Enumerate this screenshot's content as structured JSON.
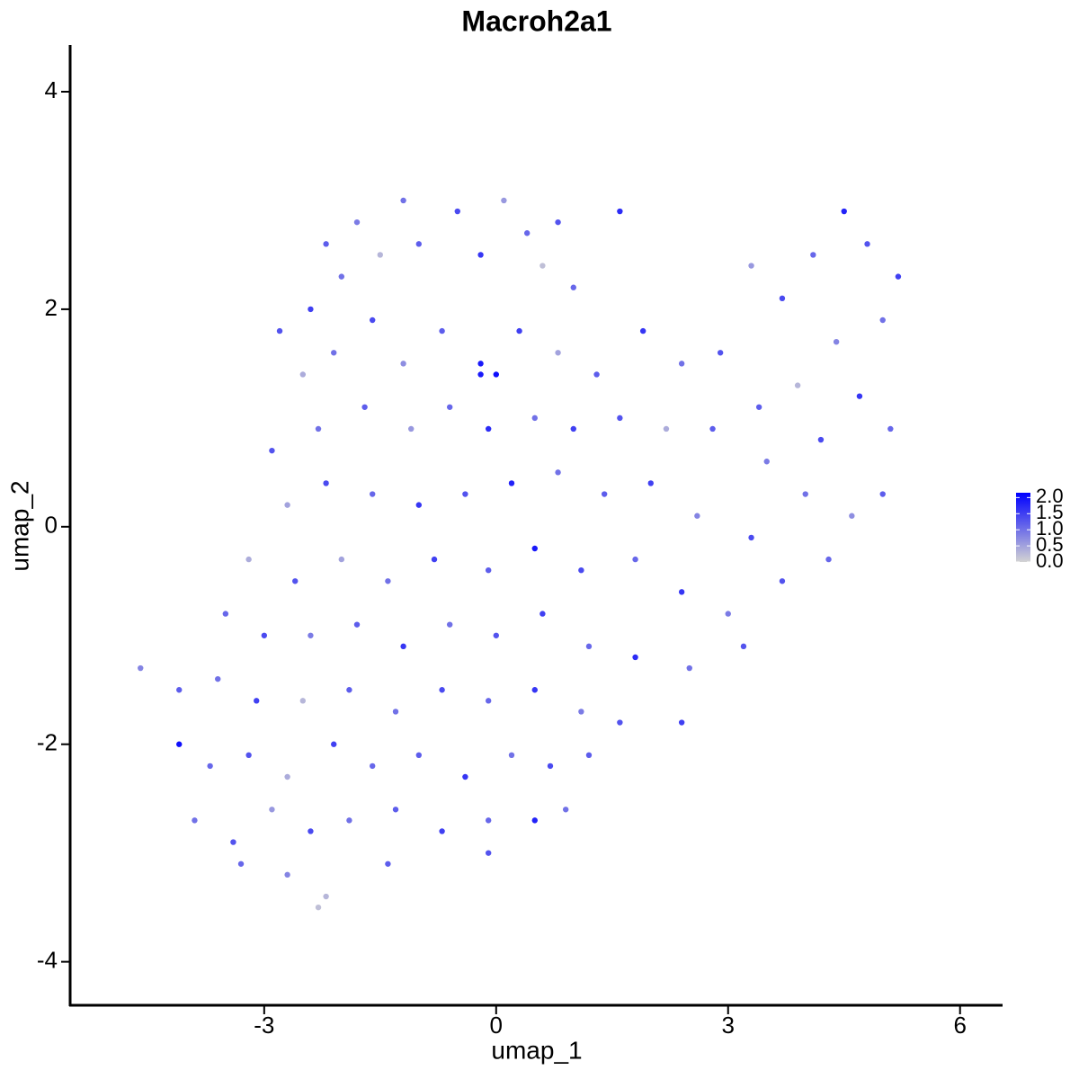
{
  "chart_data": {
    "type": "scatter",
    "title": "Macroh2a1",
    "xlabel": "umap_1",
    "ylabel": "umap_2",
    "xlim": [
      -5.51,
      6.55
    ],
    "ylim": [
      -4.4,
      4.43
    ],
    "xticks": [
      -3,
      0,
      3,
      6
    ],
    "yticks": [
      -4,
      -2,
      0,
      2,
      4
    ],
    "colorbar": {
      "lim": [
        0,
        2.15
      ],
      "low_color": "#d3d3d3",
      "high_color": "#0000ff",
      "ticks": [
        {
          "value": 0,
          "label": "0.0"
        },
        {
          "value": 0.5,
          "label": "0.5"
        },
        {
          "value": 1,
          "label": "1.0"
        },
        {
          "value": 1.5,
          "label": "1.5"
        },
        {
          "value": 2,
          "label": "2.0"
        }
      ]
    },
    "x": [
      -2.2,
      -1.8,
      -1.2,
      -0.5,
      0.1,
      0.4,
      0.8,
      1.6,
      -2.4,
      -2.0,
      -1.5,
      -1.0,
      -0.2,
      0.6,
      1.0,
      -2.8,
      -2.5,
      -2.1,
      -1.6,
      -1.2,
      -0.7,
      -0.2,
      0.3,
      0.8,
      1.3,
      1.9,
      2.4,
      2.9,
      3.3,
      3.7,
      4.1,
      4.5,
      4.8,
      5.2,
      5.0,
      4.4,
      3.9,
      3.4,
      4.7,
      5.1,
      4.2,
      3.5,
      2.8,
      2.2,
      1.6,
      1.0,
      0.5,
      -0.1,
      -0.6,
      -1.1,
      -1.7,
      -2.3,
      -2.9,
      -2.7,
      -2.2,
      -1.6,
      -1.0,
      -0.4,
      0.2,
      0.8,
      1.4,
      2.0,
      2.6,
      3.3,
      4.0,
      4.6,
      5.0,
      4.3,
      3.7,
      3.0,
      2.4,
      1.8,
      1.1,
      0.5,
      -0.1,
      -0.8,
      -1.4,
      -2.0,
      -2.6,
      -3.2,
      -3.5,
      -3.0,
      -2.4,
      -1.8,
      -1.2,
      -0.6,
      0.0,
      0.6,
      1.2,
      1.8,
      2.5,
      3.2,
      -4.6,
      -4.1,
      -3.6,
      -3.1,
      -2.5,
      -1.9,
      -1.3,
      -0.7,
      -0.1,
      0.5,
      1.1,
      1.6,
      2.4,
      -4.1,
      -3.7,
      -3.2,
      -2.7,
      -2.1,
      -1.6,
      -1.0,
      -0.4,
      0.2,
      0.7,
      1.2,
      -3.9,
      -3.4,
      -2.9,
      -2.4,
      -1.9,
      -1.3,
      -0.7,
      -0.1,
      0.5,
      0.9,
      -3.3,
      -2.7,
      -2.2,
      -1.4,
      -0.1,
      -2.3,
      0.0,
      -0.2
    ],
    "y": [
      2.6,
      2.8,
      3.0,
      2.9,
      3.0,
      2.7,
      2.8,
      2.9,
      2.0,
      2.3,
      2.5,
      2.6,
      2.5,
      2.4,
      2.2,
      1.8,
      1.4,
      1.6,
      1.9,
      1.5,
      1.8,
      1.5,
      1.8,
      1.6,
      1.4,
      1.8,
      1.5,
      1.6,
      2.4,
      2.1,
      2.5,
      2.9,
      2.6,
      2.3,
      1.9,
      1.7,
      1.3,
      1.1,
      1.2,
      0.9,
      0.8,
      0.6,
      0.9,
      0.9,
      1.0,
      0.9,
      1.0,
      0.9,
      1.1,
      0.9,
      1.1,
      0.9,
      0.7,
      0.2,
      0.4,
      0.3,
      0.2,
      0.3,
      0.4,
      0.5,
      0.3,
      0.4,
      0.1,
      -0.1,
      0.3,
      0.1,
      0.3,
      -0.3,
      -0.5,
      -0.8,
      -0.6,
      -0.3,
      -0.4,
      -0.2,
      -0.4,
      -0.3,
      -0.5,
      -0.3,
      -0.5,
      -0.3,
      -0.8,
      -1.0,
      -1.0,
      -0.9,
      -1.1,
      -0.9,
      -1.0,
      -0.8,
      -1.1,
      -1.2,
      -1.3,
      -1.1,
      -1.3,
      -1.5,
      -1.4,
      -1.6,
      -1.6,
      -1.5,
      -1.7,
      -1.5,
      -1.6,
      -1.5,
      -1.7,
      -1.8,
      -1.8,
      -2.0,
      -2.2,
      -2.1,
      -2.3,
      -2.0,
      -2.2,
      -2.1,
      -2.3,
      -2.1,
      -2.2,
      -2.1,
      -2.7,
      -2.9,
      -2.6,
      -2.8,
      -2.7,
      -2.6,
      -2.8,
      -2.7,
      -2.7,
      -2.6,
      -3.1,
      -3.2,
      -3.4,
      -3.1,
      -3.0,
      -3.5,
      1.4,
      1.4
    ],
    "values": [
      1.2,
      0.9,
      1.0,
      1.4,
      0.6,
      1.1,
      1.3,
      1.7,
      1.5,
      1.0,
      0.3,
      1.2,
      1.6,
      0.2,
      1.1,
      1.3,
      0.4,
      1.0,
      1.4,
      0.7,
      1.2,
      1.9,
      1.5,
      0.5,
      1.2,
      1.6,
      1.0,
      1.3,
      0.6,
      1.4,
      1.1,
      1.8,
      1.3,
      1.5,
      1.0,
      0.8,
      0.3,
      1.2,
      1.6,
      1.1,
      1.4,
      0.9,
      1.2,
      0.4,
      1.3,
      1.5,
      1.0,
      1.7,
      1.1,
      0.6,
      1.2,
      1.0,
      1.3,
      0.5,
      1.4,
      1.1,
      1.6,
      1.3,
      1.8,
      1.0,
      1.2,
      1.5,
      0.8,
      1.4,
      1.0,
      0.7,
      1.2,
      1.1,
      1.3,
      0.9,
      1.6,
      1.1,
      1.4,
      1.9,
      1.2,
      1.5,
      1.0,
      0.5,
      1.3,
      0.4,
      1.1,
      1.4,
      0.9,
      1.2,
      1.6,
      1.0,
      1.3,
      1.5,
      1.1,
      1.7,
      1.0,
      1.3,
      0.8,
      1.2,
      1.0,
      1.5,
      0.3,
      1.2,
      1.0,
      1.4,
      1.1,
      1.6,
      0.9,
      1.3,
      1.5,
      2.0,
      1.1,
      1.3,
      0.4,
      1.5,
      1.1,
      1.2,
      1.6,
      1.0,
      1.4,
      1.2,
      1.0,
      1.3,
      0.6,
      1.4,
      1.0,
      1.2,
      1.5,
      1.1,
      1.8,
      1.0,
      1.1,
      0.8,
      0.3,
      1.2,
      1.3,
      0.2,
      2.0,
      1.9
    ]
  }
}
